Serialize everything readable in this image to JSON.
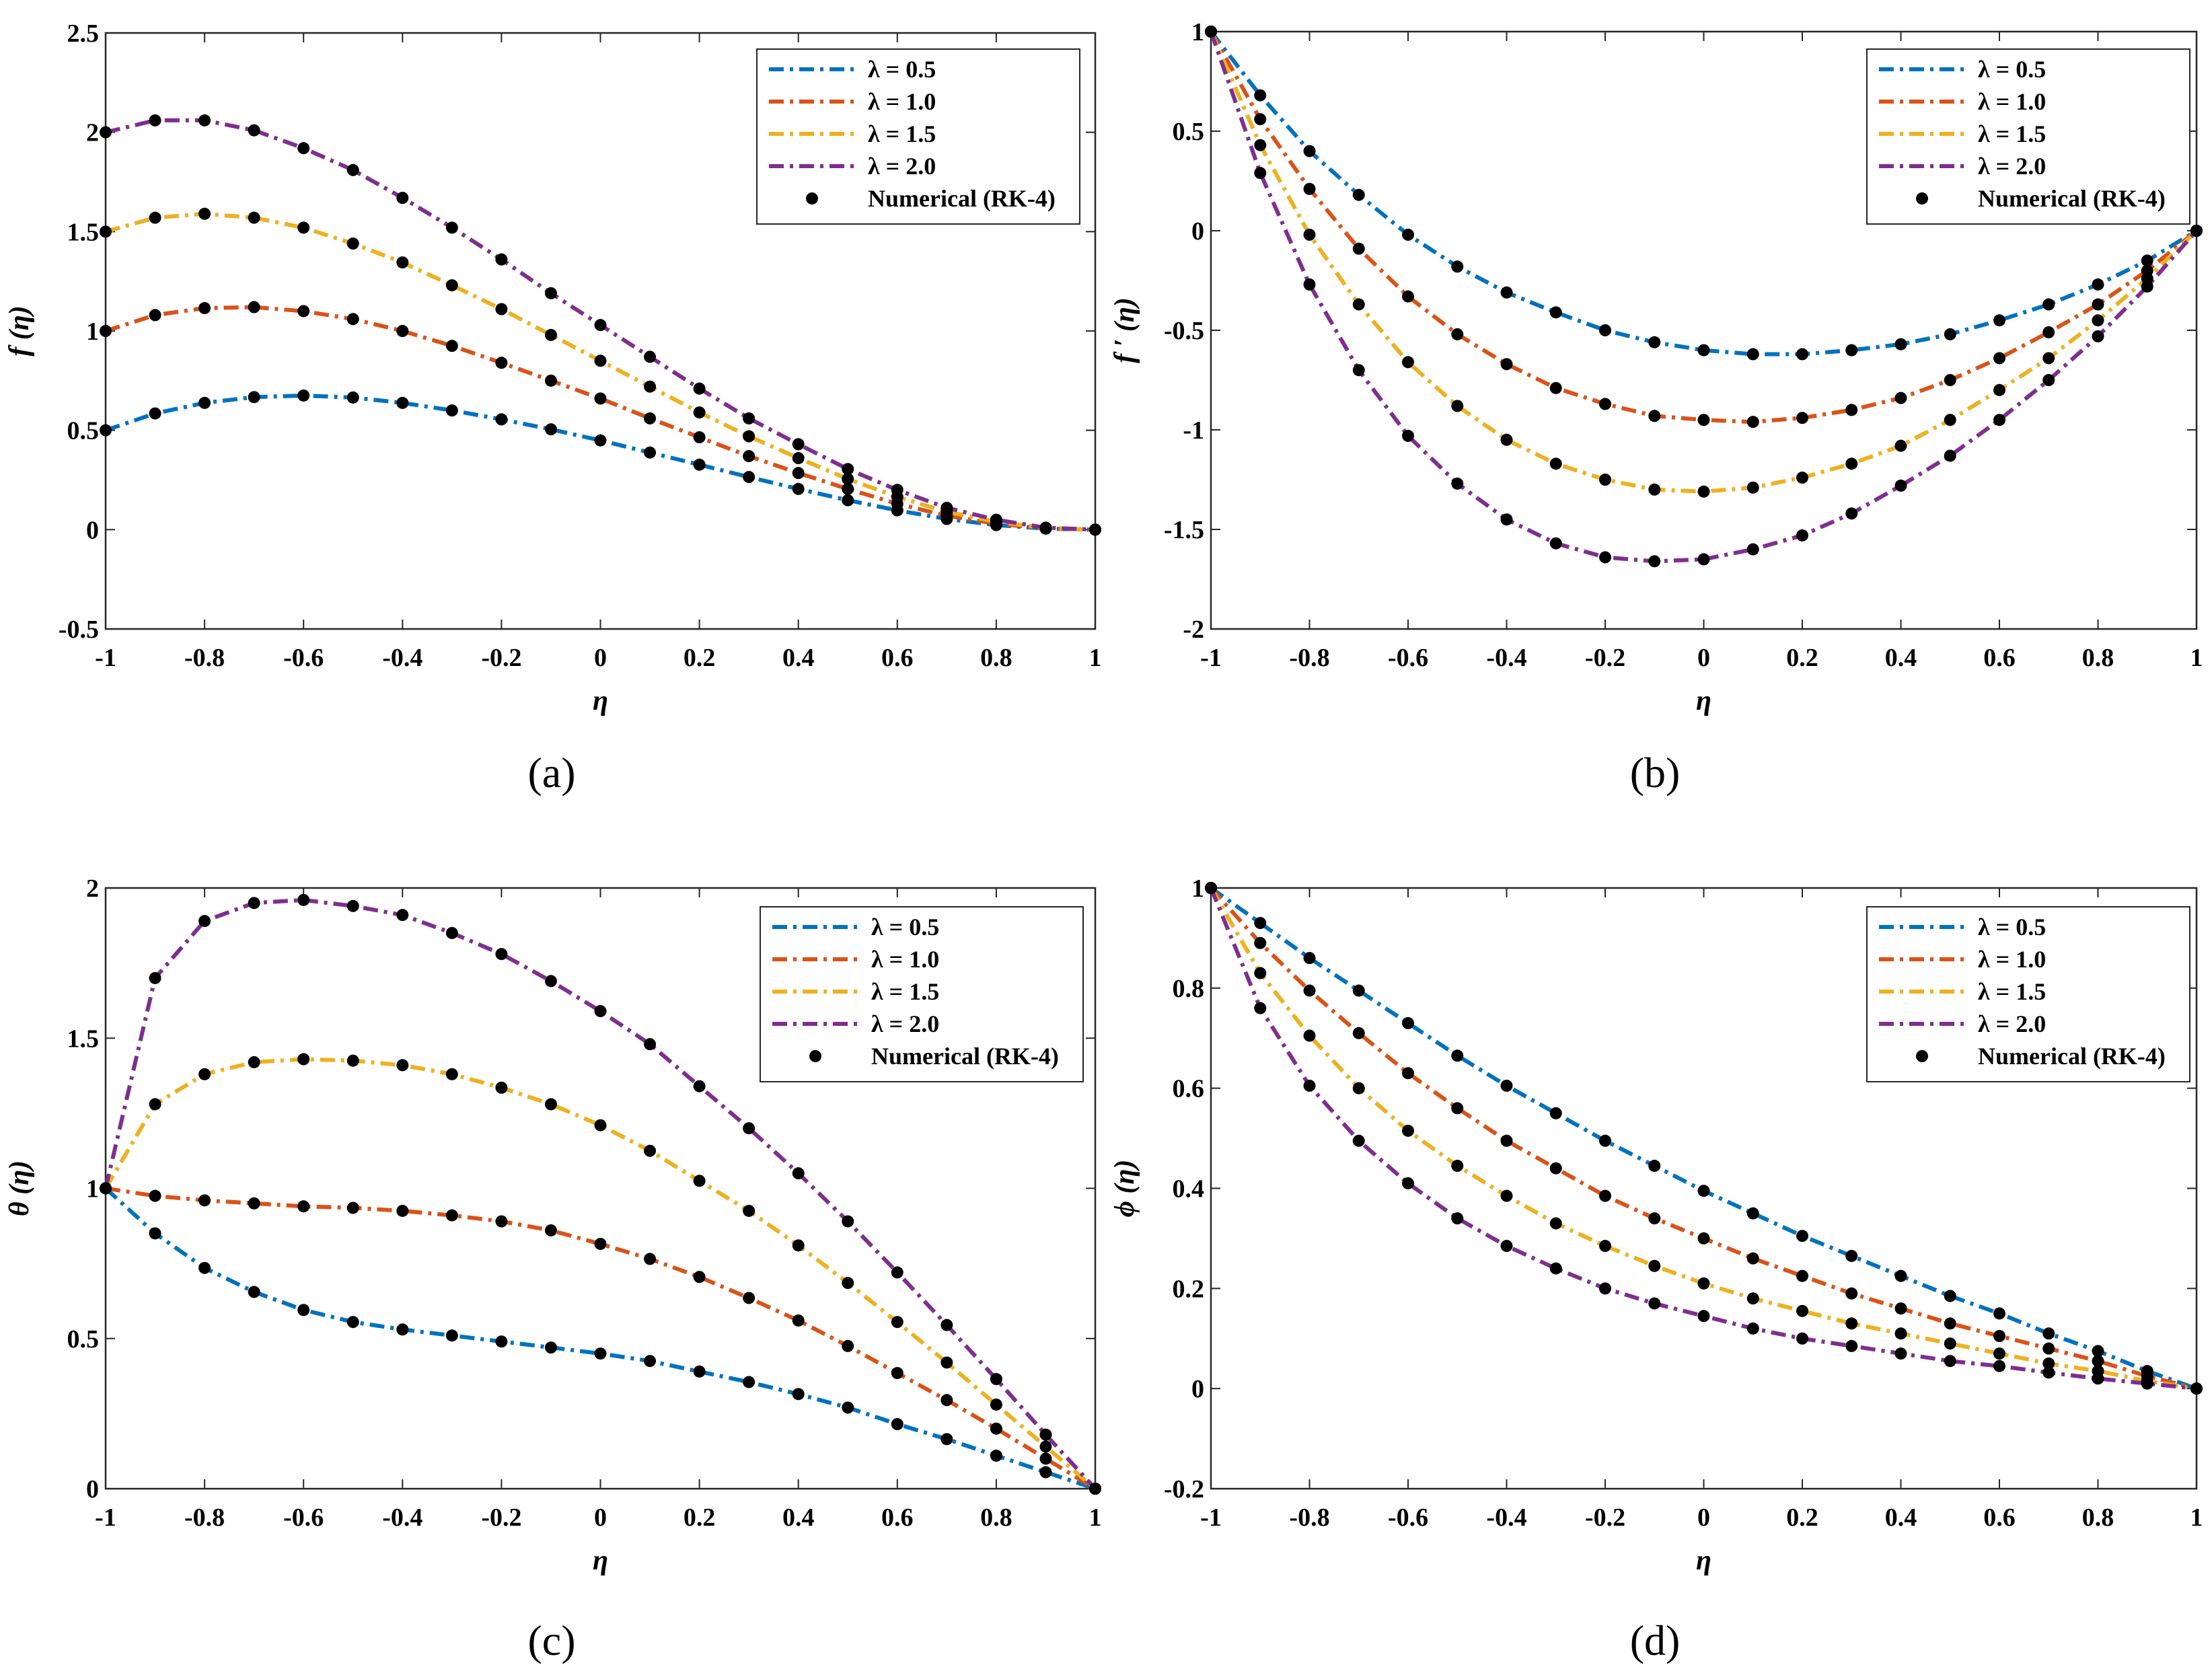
{
  "chart_data": [
    {
      "type": "line",
      "caption": "(a)",
      "xlabel": "η",
      "ylabel": "f (η)",
      "xlim": [
        -1,
        1
      ],
      "ylim": [
        -0.5,
        2.5
      ],
      "xticks": [
        -1,
        -0.8,
        -0.6,
        -0.4,
        -0.2,
        0,
        0.2,
        0.4,
        0.6,
        0.8,
        1
      ],
      "xticklabels": [
        "-1",
        "-0.8",
        "-0.6",
        "-0.4",
        "-0.2",
        "0",
        "0.2",
        "0.4",
        "0.6",
        "0.8",
        "1"
      ],
      "yticks": [
        -0.5,
        0,
        0.5,
        1,
        1.5,
        2,
        2.5
      ],
      "yticklabels": [
        "-0.5",
        "0",
        "0.5",
        "1",
        "1.5",
        "2",
        "2.5"
      ],
      "legend_position": "top-right",
      "x": [
        -1,
        -0.9,
        -0.8,
        -0.7,
        -0.6,
        -0.5,
        -0.4,
        -0.3,
        -0.2,
        -0.1,
        0,
        0.1,
        0.2,
        0.3,
        0.4,
        0.5,
        0.6,
        0.7,
        0.8,
        0.9,
        1
      ],
      "series": [
        {
          "name": "λ = 0.5",
          "color": "#0072BD",
          "values": [
            0.5,
            0.585,
            0.638,
            0.667,
            0.675,
            0.665,
            0.638,
            0.6,
            0.555,
            0.505,
            0.449,
            0.388,
            0.327,
            0.265,
            0.205,
            0.148,
            0.097,
            0.054,
            0.023,
            0.005,
            0
          ]
        },
        {
          "name": "λ = 1.0",
          "color": "#D95319",
          "values": [
            1.0,
            1.08,
            1.115,
            1.12,
            1.1,
            1.06,
            1.0,
            0.925,
            0.84,
            0.75,
            0.66,
            0.56,
            0.465,
            0.37,
            0.285,
            0.205,
            0.13,
            0.07,
            0.03,
            0.006,
            0
          ]
        },
        {
          "name": "λ = 1.5",
          "color": "#EDB120",
          "values": [
            1.5,
            1.57,
            1.59,
            1.57,
            1.52,
            1.44,
            1.345,
            1.23,
            1.11,
            0.98,
            0.85,
            0.72,
            0.59,
            0.47,
            0.36,
            0.255,
            0.165,
            0.09,
            0.04,
            0.008,
            0
          ]
        },
        {
          "name": "λ = 2.0",
          "color": "#7E2F8E",
          "values": [
            2.0,
            2.06,
            2.06,
            2.01,
            1.92,
            1.81,
            1.67,
            1.52,
            1.36,
            1.19,
            1.03,
            0.87,
            0.71,
            0.56,
            0.43,
            0.305,
            0.2,
            0.11,
            0.05,
            0.01,
            0
          ]
        }
      ],
      "numerical": {
        "name": "Numerical (RK-4)",
        "marker": "dot",
        "color": "#000000"
      }
    },
    {
      "type": "line",
      "caption": "(b)",
      "xlabel": "η",
      "ylabel": "f ′ (η)",
      "xlim": [
        -1,
        1
      ],
      "ylim": [
        -2,
        1
      ],
      "xticks": [
        -1,
        -0.8,
        -0.6,
        -0.4,
        -0.2,
        0,
        0.2,
        0.4,
        0.6,
        0.8,
        1
      ],
      "xticklabels": [
        "-1",
        "-0.8",
        "-0.6",
        "-0.4",
        "-0.2",
        "0",
        "0.2",
        "0.4",
        "0.6",
        "0.8",
        "1"
      ],
      "yticks": [
        -2,
        -1.5,
        -1,
        -0.5,
        0,
        0.5,
        1
      ],
      "yticklabels": [
        "-2",
        "-1.5",
        "-1",
        "-0.5",
        "0",
        "0.5",
        "1"
      ],
      "legend_position": "top-right",
      "x": [
        -1,
        -0.9,
        -0.8,
        -0.7,
        -0.6,
        -0.5,
        -0.4,
        -0.3,
        -0.2,
        -0.1,
        0,
        0.1,
        0.2,
        0.3,
        0.4,
        0.5,
        0.6,
        0.7,
        0.8,
        0.9,
        1
      ],
      "series": [
        {
          "name": "λ = 0.5",
          "color": "#0072BD",
          "values": [
            1,
            0.68,
            0.4,
            0.18,
            -0.02,
            -0.18,
            -0.31,
            -0.41,
            -0.5,
            -0.56,
            -0.6,
            -0.62,
            -0.62,
            -0.6,
            -0.57,
            -0.52,
            -0.45,
            -0.37,
            -0.27,
            -0.15,
            0
          ]
        },
        {
          "name": "λ = 1.0",
          "color": "#D95319",
          "values": [
            1,
            0.56,
            0.21,
            -0.09,
            -0.33,
            -0.52,
            -0.67,
            -0.79,
            -0.87,
            -0.93,
            -0.95,
            -0.96,
            -0.94,
            -0.9,
            -0.84,
            -0.75,
            -0.64,
            -0.51,
            -0.37,
            -0.2,
            0
          ]
        },
        {
          "name": "λ = 1.5",
          "color": "#EDB120",
          "values": [
            1,
            0.43,
            -0.02,
            -0.37,
            -0.66,
            -0.88,
            -1.05,
            -1.17,
            -1.25,
            -1.3,
            -1.31,
            -1.29,
            -1.24,
            -1.17,
            -1.08,
            -0.95,
            -0.8,
            -0.64,
            -0.45,
            -0.24,
            0
          ]
        },
        {
          "name": "λ = 2.0",
          "color": "#7E2F8E",
          "values": [
            1,
            0.29,
            -0.27,
            -0.7,
            -1.03,
            -1.27,
            -1.45,
            -1.57,
            -1.64,
            -1.66,
            -1.65,
            -1.6,
            -1.53,
            -1.42,
            -1.28,
            -1.13,
            -0.95,
            -0.75,
            -0.53,
            -0.28,
            0
          ]
        }
      ],
      "numerical": {
        "name": "Numerical (RK-4)",
        "marker": "dot",
        "color": "#000000"
      }
    },
    {
      "type": "line",
      "caption": "(c)",
      "xlabel": "η",
      "ylabel": "θ (η)",
      "xlim": [
        -1,
        1
      ],
      "ylim": [
        0,
        2
      ],
      "xticks": [
        -1,
        -0.8,
        -0.6,
        -0.4,
        -0.2,
        0,
        0.2,
        0.4,
        0.6,
        0.8,
        1
      ],
      "xticklabels": [
        "-1",
        "-0.8",
        "-0.6",
        "-0.4",
        "-0.2",
        "0",
        "0.2",
        "0.4",
        "0.6",
        "0.8",
        "1"
      ],
      "yticks": [
        0,
        0.5,
        1,
        1.5,
        2
      ],
      "yticklabels": [
        "0",
        "0.5",
        "1",
        "1.5",
        "2"
      ],
      "legend_position": "top-right",
      "x": [
        -1,
        -0.9,
        -0.8,
        -0.7,
        -0.6,
        -0.5,
        -0.4,
        -0.3,
        -0.2,
        -0.1,
        0,
        0.1,
        0.2,
        0.3,
        0.4,
        0.5,
        0.6,
        0.7,
        0.8,
        0.9,
        1
      ],
      "series": [
        {
          "name": "λ = 0.5",
          "color": "#0072BD",
          "values": [
            1,
            0.85,
            0.735,
            0.655,
            0.595,
            0.555,
            0.53,
            0.51,
            0.49,
            0.47,
            0.45,
            0.425,
            0.39,
            0.355,
            0.315,
            0.27,
            0.215,
            0.165,
            0.11,
            0.055,
            0
          ]
        },
        {
          "name": "λ = 1.0",
          "color": "#D95319",
          "values": [
            1,
            0.975,
            0.96,
            0.95,
            0.94,
            0.935,
            0.925,
            0.91,
            0.89,
            0.86,
            0.815,
            0.765,
            0.705,
            0.635,
            0.56,
            0.475,
            0.385,
            0.295,
            0.2,
            0.1,
            0
          ]
        },
        {
          "name": "λ = 1.5",
          "color": "#EDB120",
          "values": [
            1,
            1.28,
            1.38,
            1.42,
            1.43,
            1.425,
            1.41,
            1.38,
            1.335,
            1.28,
            1.21,
            1.125,
            1.025,
            0.925,
            0.81,
            0.685,
            0.555,
            0.42,
            0.28,
            0.14,
            0
          ]
        },
        {
          "name": "λ = 2.0",
          "color": "#7E2F8E",
          "values": [
            1,
            1.7,
            1.89,
            1.95,
            1.96,
            1.94,
            1.91,
            1.85,
            1.78,
            1.69,
            1.59,
            1.48,
            1.34,
            1.2,
            1.05,
            0.89,
            0.72,
            0.545,
            0.365,
            0.18,
            0
          ]
        }
      ],
      "numerical": {
        "name": "Numerical (RK-4)",
        "marker": "dot",
        "color": "#000000"
      }
    },
    {
      "type": "line",
      "caption": "(d)",
      "xlabel": "η",
      "ylabel": "ϕ (η)",
      "xlim": [
        -1,
        1
      ],
      "ylim": [
        -0.2,
        1
      ],
      "xticks": [
        -1,
        -0.8,
        -0.6,
        -0.4,
        -0.2,
        0,
        0.2,
        0.4,
        0.6,
        0.8,
        1
      ],
      "xticklabels": [
        "-1",
        "-0.8",
        "-0.6",
        "-0.4",
        "-0.2",
        "0",
        "0.2",
        "0.4",
        "0.6",
        "0.8",
        "1"
      ],
      "yticks": [
        -0.2,
        0,
        0.2,
        0.4,
        0.6,
        0.8,
        1
      ],
      "yticklabels": [
        "-0.2",
        "0",
        "0.2",
        "0.4",
        "0.6",
        "0.8",
        "1"
      ],
      "legend_position": "top-right",
      "x": [
        -1,
        -0.9,
        -0.8,
        -0.7,
        -0.6,
        -0.5,
        -0.4,
        -0.3,
        -0.2,
        -0.1,
        0,
        0.1,
        0.2,
        0.3,
        0.4,
        0.5,
        0.6,
        0.7,
        0.8,
        0.9,
        1
      ],
      "series": [
        {
          "name": "λ = 0.5",
          "color": "#0072BD",
          "values": [
            1,
            0.93,
            0.86,
            0.795,
            0.73,
            0.665,
            0.605,
            0.55,
            0.495,
            0.445,
            0.395,
            0.35,
            0.305,
            0.265,
            0.225,
            0.185,
            0.15,
            0.11,
            0.075,
            0.035,
            0
          ]
        },
        {
          "name": "λ = 1.0",
          "color": "#D95319",
          "values": [
            1,
            0.89,
            0.795,
            0.71,
            0.63,
            0.56,
            0.495,
            0.44,
            0.385,
            0.34,
            0.3,
            0.26,
            0.225,
            0.19,
            0.16,
            0.13,
            0.105,
            0.08,
            0.055,
            0.025,
            0
          ]
        },
        {
          "name": "λ = 1.5",
          "color": "#EDB120",
          "values": [
            1,
            0.83,
            0.705,
            0.6,
            0.515,
            0.445,
            0.385,
            0.33,
            0.285,
            0.245,
            0.21,
            0.18,
            0.155,
            0.13,
            0.11,
            0.09,
            0.07,
            0.05,
            0.035,
            0.015,
            0
          ]
        },
        {
          "name": "λ = 2.0",
          "color": "#7E2F8E",
          "values": [
            1,
            0.76,
            0.605,
            0.495,
            0.41,
            0.34,
            0.285,
            0.24,
            0.2,
            0.17,
            0.145,
            0.12,
            0.1,
            0.085,
            0.07,
            0.055,
            0.045,
            0.032,
            0.02,
            0.01,
            0
          ]
        }
      ],
      "numerical": {
        "name": "Numerical (RK-4)",
        "marker": "dot",
        "color": "#000000"
      }
    }
  ]
}
